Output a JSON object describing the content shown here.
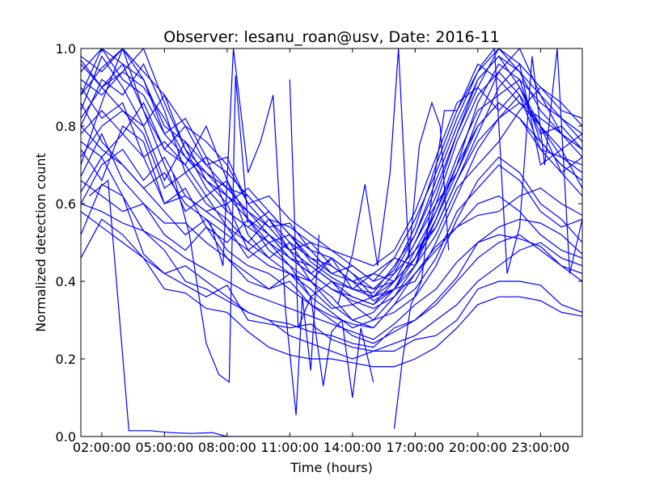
{
  "chart_data": {
    "type": "line",
    "title": "Observer: lesanu_roan@usv, Date: 2016-11",
    "xlabel": "Time (hours)",
    "ylabel": "Normalized detection count",
    "xlim": [
      1,
      25
    ],
    "ylim": [
      0,
      1
    ],
    "x_ticks": [
      {
        "value": 2,
        "label": "02:00:00"
      },
      {
        "value": 5,
        "label": "05:00:00"
      },
      {
        "value": 8,
        "label": "08:00:00"
      },
      {
        "value": 11,
        "label": "11:00:00"
      },
      {
        "value": 14,
        "label": "14:00:00"
      },
      {
        "value": 17,
        "label": "17:00:00"
      },
      {
        "value": 20,
        "label": "20:00:00"
      },
      {
        "value": 23,
        "label": "23:00:00"
      }
    ],
    "y_ticks": [
      {
        "value": 0,
        "label": "0.0"
      },
      {
        "value": 0.2,
        "label": "0.2"
      },
      {
        "value": 0.4,
        "label": "0.4"
      },
      {
        "value": 0.6,
        "label": "0.6"
      },
      {
        "value": 0.8,
        "label": "0.8"
      },
      {
        "value": 1.0,
        "label": "1.0"
      }
    ],
    "grid": false,
    "line_color": "#0000ff",
    "x": [
      1,
      2,
      3,
      4,
      5,
      6,
      7,
      8,
      9,
      10,
      11,
      12,
      13,
      14,
      15,
      16,
      17,
      18,
      19,
      20,
      21,
      22,
      23,
      24,
      25
    ],
    "series": [
      {
        "values": [
          0.46,
          0.56,
          0.52,
          0.46,
          0.38,
          0.37,
          0.33,
          0.32,
          0.27,
          0.23,
          0.21,
          0.2,
          0.2,
          0.19,
          0.18,
          0.18,
          0.2,
          0.23,
          0.28,
          0.34,
          0.36,
          0.36,
          0.35,
          0.32,
          0.31
        ]
      },
      {
        "values": [
          0.52,
          0.65,
          0.62,
          0.47,
          0.42,
          0.39,
          0.36,
          0.39,
          0.3,
          0.29,
          0.28,
          0.29,
          0.25,
          0.23,
          0.22,
          0.22,
          0.25,
          0.26,
          0.3,
          0.38,
          0.4,
          0.4,
          0.39,
          0.34,
          0.32
        ]
      },
      {
        "values": [
          0.63,
          0.72,
          0.62,
          0.53,
          0.48,
          0.4,
          0.38,
          0.35,
          0.32,
          0.3,
          0.29,
          0.27,
          0.26,
          0.24,
          0.23,
          0.28,
          0.3,
          0.35,
          0.41,
          0.5,
          0.52,
          0.51,
          0.49,
          0.44,
          0.4
        ]
      },
      {
        "values": [
          0.6,
          0.58,
          0.55,
          0.53,
          0.5,
          0.46,
          0.43,
          0.4,
          0.37,
          0.35,
          0.33,
          0.31,
          0.29,
          0.27,
          0.25,
          0.29,
          0.34,
          0.38,
          0.45,
          0.5,
          0.54,
          0.56,
          0.55,
          0.52,
          0.47
        ]
      },
      {
        "values": [
          0.67,
          0.78,
          0.66,
          0.6,
          0.55,
          0.55,
          0.5,
          0.46,
          0.42,
          0.38,
          0.4,
          0.34,
          0.31,
          0.29,
          0.28,
          0.34,
          0.42,
          0.49,
          0.54,
          0.57,
          0.58,
          0.62,
          0.64,
          0.6,
          0.57
        ]
      },
      {
        "values": [
          0.78,
          0.84,
          0.78,
          0.72,
          0.6,
          0.62,
          0.58,
          0.6,
          0.48,
          0.44,
          0.42,
          0.38,
          0.33,
          0.34,
          0.36,
          0.38,
          0.48,
          0.58,
          0.7,
          0.8,
          0.86,
          0.82,
          0.74,
          0.72,
          0.7
        ]
      },
      {
        "values": [
          0.82,
          0.9,
          0.96,
          0.84,
          0.74,
          0.7,
          0.62,
          0.66,
          0.56,
          0.5,
          0.52,
          0.45,
          0.41,
          0.38,
          0.37,
          0.44,
          0.52,
          0.66,
          0.8,
          0.92,
          0.98,
          0.9,
          0.8,
          0.74,
          0.78
        ]
      },
      {
        "values": [
          0.88,
          0.95,
          1.0,
          0.92,
          0.8,
          0.76,
          0.7,
          0.64,
          0.58,
          0.52,
          0.48,
          0.44,
          0.4,
          0.36,
          0.34,
          0.4,
          0.5,
          0.62,
          0.78,
          0.9,
          1.0,
          0.94,
          0.84,
          0.78,
          0.72
        ]
      },
      {
        "values": [
          0.94,
          1.0,
          0.92,
          0.88,
          0.78,
          0.82,
          0.72,
          0.68,
          0.62,
          0.56,
          0.5,
          0.46,
          0.44,
          0.4,
          0.38,
          0.43,
          0.54,
          0.7,
          0.84,
          0.96,
          0.92,
          0.86,
          0.8,
          0.72,
          0.68
        ]
      },
      {
        "values": [
          0.7,
          0.86,
          1.0,
          0.94,
          0.88,
          0.8,
          0.76,
          0.7,
          0.6,
          0.54,
          0.55,
          0.48,
          0.42,
          0.4,
          0.35,
          0.38,
          0.46,
          0.56,
          0.7,
          0.86,
          0.96,
          0.92,
          0.76,
          0.7,
          0.66
        ]
      },
      {
        "values": [
          0.97,
          0.9,
          0.94,
          1.0,
          0.86,
          0.74,
          0.68,
          0.62,
          0.56,
          0.52,
          0.46,
          0.42,
          0.38,
          0.35,
          0.33,
          0.36,
          0.44,
          0.6,
          0.76,
          0.88,
          0.94,
          1.0,
          0.88,
          0.78,
          0.74
        ]
      },
      {
        "values": [
          0.8,
          0.92,
          0.88,
          0.96,
          0.84,
          0.68,
          0.72,
          0.58,
          0.54,
          0.58,
          0.52,
          0.46,
          0.42,
          0.44,
          0.4,
          0.42,
          0.48,
          0.54,
          0.66,
          0.78,
          0.9,
          0.96,
          0.7,
          0.74,
          0.64
        ]
      },
      {
        "values": [
          0.74,
          0.66,
          0.8,
          0.76,
          0.6,
          0.64,
          0.54,
          0.5,
          0.56,
          0.48,
          0.44,
          0.4,
          0.36,
          0.3,
          0.32,
          0.38,
          0.4,
          0.5,
          0.62,
          0.74,
          0.82,
          0.88,
          0.8,
          0.68,
          0.62
        ]
      },
      {
        "values": [
          0.9,
          0.82,
          0.86,
          0.72,
          0.76,
          0.7,
          0.8,
          0.66,
          0.52,
          0.46,
          0.5,
          0.42,
          0.46,
          0.38,
          0.42,
          0.46,
          0.44,
          0.52,
          0.64,
          0.7,
          0.76,
          0.84,
          0.9,
          0.86,
          0.8
        ]
      },
      {
        "values": [
          0.86,
          0.76,
          0.7,
          0.64,
          0.58,
          0.52,
          0.56,
          0.48,
          0.44,
          0.42,
          0.38,
          0.34,
          0.3,
          0.26,
          0.24,
          0.27,
          0.3,
          0.34,
          0.4,
          0.46,
          0.5,
          0.52,
          0.48,
          0.44,
          0.42
        ]
      },
      {
        "values": [
          0.98,
          0.94,
          1.0,
          0.84,
          0.7,
          0.58,
          0.62,
          0.54,
          0.5,
          0.56,
          0.48,
          0.4,
          0.46,
          0.42,
          0.38,
          0.4,
          0.46,
          0.58,
          0.72,
          0.84,
          0.88,
          0.92,
          0.86,
          0.82,
          0.76
        ]
      },
      {
        "values": [
          0.6,
          0.7,
          0.74,
          0.66,
          0.72,
          0.62,
          0.58,
          0.54,
          0.46,
          0.5,
          0.44,
          0.36,
          0.4,
          0.34,
          0.3,
          0.32,
          0.36,
          0.44,
          0.56,
          0.66,
          0.72,
          0.68,
          0.6,
          0.56,
          0.5
        ]
      },
      {
        "values": [
          0.84,
          0.98,
          0.9,
          0.8,
          0.66,
          0.76,
          0.66,
          0.62,
          0.58,
          0.54,
          0.48,
          0.5,
          0.44,
          0.4,
          0.42,
          0.4,
          0.5,
          0.6,
          0.68,
          0.82,
          0.94,
          0.88,
          0.74,
          0.68,
          0.72
        ]
      },
      {
        "values": [
          0.72,
          0.8,
          0.84,
          0.78,
          0.64,
          0.68,
          0.6,
          0.56,
          0.5,
          0.46,
          0.42,
          0.4,
          0.34,
          0.3,
          0.28,
          0.34,
          0.38,
          0.46,
          0.58,
          0.64,
          0.7,
          0.66,
          0.58,
          0.54,
          0.56
        ]
      },
      {
        "values": [
          0.92,
          0.88,
          0.94,
          0.9,
          0.82,
          0.72,
          0.68,
          0.64,
          0.62,
          0.56,
          0.54,
          0.5,
          0.48,
          0.44,
          0.4,
          0.46,
          0.56,
          0.68,
          0.82,
          0.94,
          1.0,
          0.96,
          0.9,
          0.84,
          0.82
        ]
      },
      {
        "values": [
          0.66,
          0.62,
          0.58,
          0.6,
          0.52,
          0.48,
          0.54,
          0.46,
          0.4,
          0.38,
          0.42,
          0.36,
          0.32,
          0.28,
          0.3,
          0.36,
          0.42,
          0.48,
          0.54,
          0.6,
          0.62,
          0.58,
          0.52,
          0.48,
          0.46
        ]
      },
      {
        "values": [
          0.76,
          0.72,
          0.78,
          0.86,
          0.74,
          0.8,
          0.7,
          0.72,
          0.6,
          0.62,
          0.56,
          0.52,
          0.48,
          0.46,
          0.44,
          0.48,
          0.58,
          0.72,
          0.86,
          0.9,
          0.84,
          0.9,
          0.78,
          0.8,
          0.74
        ]
      },
      {
        "values": [
          0.96,
          0.9,
          0.84,
          0.8,
          0.88,
          0.74,
          0.64,
          0.58,
          0.54,
          0.5,
          0.46,
          0.42,
          0.38,
          0.36,
          0.34,
          0.38,
          0.44,
          0.56,
          0.68,
          0.8,
          0.86,
          0.82,
          0.76,
          0.7,
          0.66
        ]
      },
      {
        "values": [
          0.88,
          1.0,
          0.96,
          0.92,
          0.78,
          0.72,
          0.66,
          0.6,
          0.64,
          0.58,
          0.52,
          0.48,
          0.46,
          0.42,
          0.36,
          0.42,
          0.52,
          0.64,
          0.78,
          0.92,
          0.98,
          0.94,
          0.88,
          0.82,
          0.78
        ]
      },
      {
        "values": [
          0.58,
          0.54,
          0.5,
          0.46,
          0.42,
          0.44,
          0.4,
          0.36,
          0.32,
          0.3,
          0.26,
          0.24,
          0.22,
          0.2,
          0.22,
          0.24,
          0.26,
          0.3,
          0.34,
          0.4,
          0.44,
          0.48,
          0.5,
          0.46,
          0.44
        ]
      },
      {
        "values": [
          0.8,
          0.74,
          0.7,
          0.64,
          0.68,
          0.6,
          0.56,
          0.52,
          0.48,
          0.52,
          0.46,
          0.44,
          0.4,
          0.38,
          0.36,
          0.4,
          0.46,
          0.54,
          0.66,
          0.76,
          0.82,
          0.86,
          0.82,
          0.78,
          0.74
        ]
      }
    ],
    "segments": [
      {
        "x": [
          1.4,
          2.3,
          3.3,
          4.3,
          5.3,
          6.3,
          7.3,
          8.0,
          9.0,
          10.0,
          11.0
        ],
        "values": [
          0.62,
          0.66,
          0.015,
          0.015,
          0.01,
          0.008,
          0.01,
          0.0,
          0.0,
          0.0,
          0.0
        ]
      },
      {
        "x": [
          5.4,
          6.2,
          7.0,
          7.6,
          8.1,
          8.4,
          9.0
        ],
        "values": [
          0.68,
          0.52,
          0.24,
          0.16,
          0.14,
          0.93,
          0.55
        ]
      },
      {
        "x": [
          7.2,
          7.8,
          8.3,
          9.0,
          9.6,
          10.2,
          10.8,
          11.3,
          11.6,
          12.0,
          12.4
        ],
        "values": [
          0.55,
          0.44,
          1.0,
          0.68,
          0.76,
          0.88,
          0.32,
          0.055,
          0.36,
          0.17,
          0.52
        ]
      },
      {
        "x": [
          11.0,
          11.4,
          12.0,
          12.6,
          13.0,
          13.5,
          14.0,
          14.4,
          15.0
        ],
        "values": [
          0.92,
          0.28,
          0.36,
          0.13,
          0.27,
          0.3,
          0.1,
          0.28,
          0.14
        ]
      },
      {
        "x": [
          13.3,
          14.0,
          14.6,
          15.2,
          15.8,
          16.2,
          16.7,
          17.2,
          17.8,
          18.2,
          18.6
        ],
        "values": [
          0.34,
          0.47,
          0.65,
          0.44,
          0.68,
          1.0,
          0.46,
          0.75,
          0.86,
          0.8,
          0.48
        ]
      },
      {
        "x": [
          16.0,
          16.4,
          16.8,
          17.3,
          17.8,
          18.4,
          19.0,
          19.6,
          20.2,
          20.8,
          21.4,
          22.0,
          22.6,
          23.2,
          23.8,
          24.4,
          25.0
        ],
        "values": [
          0.02,
          0.2,
          0.34,
          0.4,
          0.62,
          0.84,
          0.84,
          0.9,
          0.96,
          1.0,
          0.42,
          0.54,
          0.98,
          0.7,
          1.0,
          0.42,
          0.56
        ]
      }
    ]
  }
}
